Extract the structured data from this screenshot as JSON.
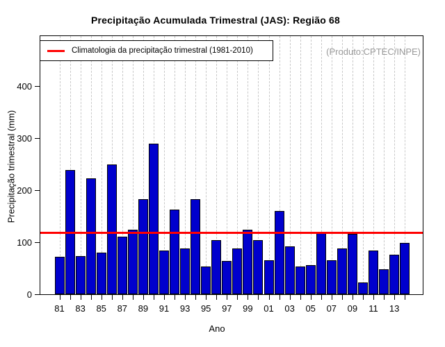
{
  "chart_data": {
    "type": "bar",
    "title": "Precipitação Acumulada Trimestral (JAS): Região 68",
    "xlabel": "Ano",
    "ylabel": "Precipitação trimestral (mm)",
    "watermark": "(Produto:CPTEC/INPE)",
    "legend": {
      "label": "Climatologia da precipitação trimestral (1981-2010)",
      "line_color": "#ff0000",
      "position": "top-left"
    },
    "categories": [
      "81",
      "82",
      "83",
      "84",
      "85",
      "86",
      "87",
      "88",
      "89",
      "90",
      "91",
      "92",
      "93",
      "94",
      "95",
      "96",
      "97",
      "98",
      "99",
      "00",
      "01",
      "02",
      "03",
      "04",
      "05",
      "06",
      "07",
      "08",
      "09",
      "10",
      "11",
      "12",
      "13",
      "14"
    ],
    "values": [
      70,
      237,
      72,
      221,
      78,
      248,
      109,
      122,
      181,
      288,
      83,
      161,
      86,
      181,
      52,
      102,
      62,
      87,
      122,
      102,
      64,
      158,
      90,
      52,
      54,
      116,
      64,
      86,
      114,
      21,
      82,
      46,
      75,
      97
    ],
    "climatology_mm": 118,
    "x_tick_labels_shown": [
      "81",
      "83",
      "85",
      "87",
      "89",
      "91",
      "93",
      "95",
      "97",
      "99",
      "01",
      "03",
      "05",
      "07",
      "09",
      "11",
      "13"
    ],
    "y_ticks": [
      0,
      100,
      200,
      300,
      400
    ],
    "ylim": [
      0,
      496
    ],
    "bar_color": "#0000cd",
    "bar_border_color": "#000000",
    "grid": "vertical-dashed",
    "grid_color": "#c8c8c8"
  }
}
